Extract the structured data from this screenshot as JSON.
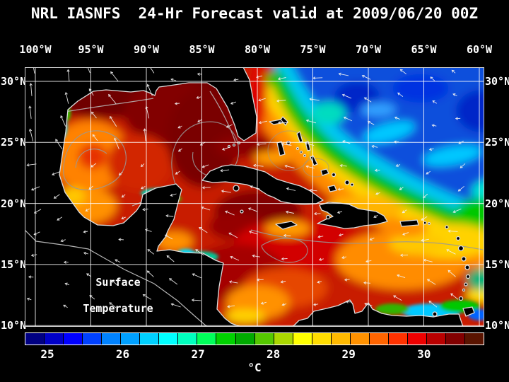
{
  "title": "NRL IASNFS  24-Hr Forecast valid at 2009/06/20 00Z",
  "axes": {
    "lon_labels": [
      "100°W",
      "95°W",
      "90°W",
      "85°W",
      "80°W",
      "75°W",
      "70°W",
      "65°W",
      "60°W"
    ],
    "lat_labels": [
      "30°N",
      "25°N",
      "20°N",
      "15°N",
      "10°N"
    ]
  },
  "annotation": {
    "line1": "Surface",
    "line2": "Temperature"
  },
  "colorbar": {
    "unit": "°C",
    "tick_labels": [
      "25",
      "26",
      "27",
      "28",
      "29",
      "30"
    ],
    "colors": [
      "#000082",
      "#0000c8",
      "#0000ff",
      "#0041ff",
      "#0082ff",
      "#00a0ff",
      "#00d0ff",
      "#00ffff",
      "#00ffbe",
      "#00ff5a",
      "#00d200",
      "#00aa00",
      "#55c800",
      "#aad700",
      "#ffff00",
      "#ffdc00",
      "#ffb900",
      "#ff9100",
      "#ff6400",
      "#ff3200",
      "#ee0000",
      "#b90000",
      "#820000",
      "#5a1400"
    ]
  },
  "chart_data": {
    "type": "heatmap",
    "title": "NRL IASNFS 24-Hr Forecast valid at 2009/06/20 00Z",
    "variable": "sea surface temperature",
    "unit": "°C",
    "region": "Intra-Americas Sea: Gulf of Mexico, Caribbean Sea, western North Atlantic",
    "x_axis": {
      "label": "Longitude",
      "ticks_deg_w": [
        100,
        95,
        90,
        85,
        80,
        75,
        70,
        65,
        60
      ]
    },
    "y_axis": {
      "label": "Latitude",
      "ticks_deg_n": [
        30,
        25,
        20,
        15,
        10
      ]
    },
    "colorbar_ticks_c": [
      25,
      26,
      27,
      28,
      29,
      30
    ],
    "colorbar_range_c": [
      24.7,
      30.8
    ],
    "features": [
      {
        "area": "Gulf of Mexico (most of basin)",
        "sst_c": "29.5-31, dark red"
      },
      {
        "area": "Western Gulf warm-core eddy with gray current contours",
        "sst_c": "~29, orange ring"
      },
      {
        "area": "Loop Current / Straits of Florida",
        "sst_c": "30-31, dark red"
      },
      {
        "area": "Northwest Caribbean south of Cuba",
        "sst_c": "29.5-30.5, dark red"
      },
      {
        "area": "Central and eastern Caribbean",
        "sst_c": "28-29.5, orange/yellow"
      },
      {
        "area": "Atlantic northeast of the Bahamas",
        "sst_c": "25-26.5, blue with cyan mottling"
      },
      {
        "area": "Atlantic 20-25N transition band",
        "sst_c": "26.5-28, cyan-green-yellow diagonal front"
      },
      {
        "area": "Venezuela coastal upwelling",
        "sst_c": "25.5-27, cyan/green strip"
      }
    ],
    "overlays": [
      "white surface wind vectors (arrows)",
      "gray ocean current contours",
      "white coastlines",
      "white 5-degree lat/lon grid"
    ]
  }
}
